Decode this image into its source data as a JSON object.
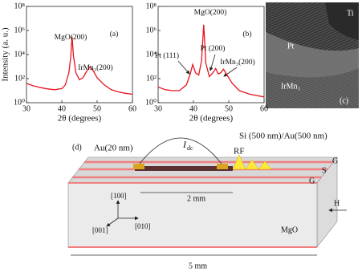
{
  "chart_data": [
    {
      "type": "line",
      "log_y": true,
      "color": "#e8141e",
      "y_label": "Intensity (a. u.)",
      "x_label": "2θ (degrees)",
      "annotations": [
        "(a)",
        "MgO(200)",
        "IrMn₃(200)"
      ],
      "x": [
        30,
        32,
        34,
        36,
        38,
        40,
        41,
        42,
        42.5,
        42.9,
        43.3,
        44,
        45,
        46,
        47,
        48,
        49,
        50,
        52,
        54,
        56,
        58,
        60
      ],
      "values": [
        40,
        25,
        18,
        14,
        12,
        15,
        30,
        300,
        5000,
        300000,
        8000,
        300,
        80,
        120,
        400,
        1000,
        400,
        120,
        30,
        12,
        8,
        6,
        5
      ],
      "xlim": [
        30,
        60
      ],
      "xticks": [
        30,
        40,
        50,
        60
      ],
      "ylim": [
        1,
        100000000
      ],
      "yticks": [
        {
          "value": 1,
          "label": "10⁰"
        },
        {
          "value": 100,
          "label": "10²"
        },
        {
          "value": 10000,
          "label": "10⁴"
        },
        {
          "value": 1000000,
          "label": "10⁶"
        },
        {
          "value": 100000000,
          "label": "10⁸"
        }
      ]
    },
    {
      "type": "line",
      "log_y": true,
      "color": "#e8141e",
      "x_label": "2θ (degrees)",
      "annotations": [
        "(b)",
        "MgO(200)",
        "Pt (111)",
        "Pt (200)",
        "IrMn₃(200)"
      ],
      "x": [
        30,
        32,
        34,
        36,
        38,
        39,
        39.8,
        40.6,
        41.5,
        42.3,
        42.9,
        43.5,
        44.5,
        45.5,
        46.3,
        47,
        47.7,
        48.5,
        49.5,
        51,
        53,
        56,
        60
      ],
      "values": [
        20,
        12,
        10,
        10,
        30,
        200,
        1500,
        300,
        200,
        3000,
        3000000,
        2000,
        150,
        300,
        700,
        250,
        300,
        600,
        200,
        40,
        10,
        5,
        3
      ],
      "xlim": [
        30,
        60
      ],
      "xticks": [
        30,
        40,
        50,
        60
      ],
      "ylim": [
        1,
        100000000
      ],
      "yticks": [
        {
          "value": 1,
          "label": "10⁰"
        },
        {
          "value": 100,
          "label": "10²"
        },
        {
          "value": 10000,
          "label": "10⁴"
        },
        {
          "value": 1000000,
          "label": "10⁶"
        },
        {
          "value": 100000000,
          "label": "10⁸"
        }
      ]
    }
  ],
  "tem_image": {
    "labels": [
      "Ti",
      "Pt",
      "IrMn₃",
      "(c)"
    ]
  },
  "diagram": {
    "panel": "(d)",
    "au": "Au(20 nm)",
    "current": {
      "symbol": "I",
      "subscript": "dc"
    },
    "coating": "Si (500 nm)/Au(500 nm)",
    "rf": "RF",
    "lines": [
      "G",
      "S",
      "G"
    ],
    "bar_length": "2 mm",
    "field": "H",
    "axes": [
      "[100]",
      "[001]",
      "[010]"
    ],
    "substrate": "MgO",
    "width": "5 mm"
  }
}
